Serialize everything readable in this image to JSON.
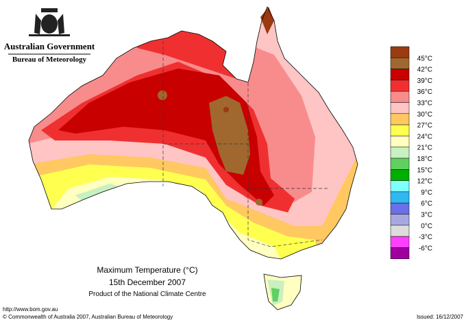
{
  "header": {
    "agency": "Australian Government",
    "bureau": "Bureau of Meteorology"
  },
  "map": {
    "title": "Maximum Temperature (°C)",
    "date": "15th December 2007",
    "product": "Product of the National Climate Centre"
  },
  "legend": {
    "labels": [
      "45°C",
      "42°C",
      "39°C",
      "36°C",
      "33°C",
      "30°C",
      "27°C",
      "24°C",
      "21°C",
      "18°C",
      "15°C",
      "12°C",
      "9°C",
      "6°C",
      "3°C",
      "0°C",
      "-3°C",
      "-6°C"
    ],
    "colors": [
      "#9a3a10",
      "#a0682e",
      "#c80000",
      "#f03030",
      "#f88c8c",
      "#ffc4c4",
      "#ffc860",
      "#ffff50",
      "#ffffc0",
      "#c8f0c0",
      "#60d060",
      "#00b000",
      "#80ffff",
      "#30b8f0",
      "#6a70e8",
      "#a8a8e0",
      "#dcdcdc",
      "#ff40ff",
      "#a000a0"
    ]
  },
  "footer": {
    "url": "http://www.bom.gov.au",
    "copyright": "© Commonwealth of Australia 2007, Australian Bureau of Meteorology",
    "issued": "Issued: 16/12/2007"
  }
}
